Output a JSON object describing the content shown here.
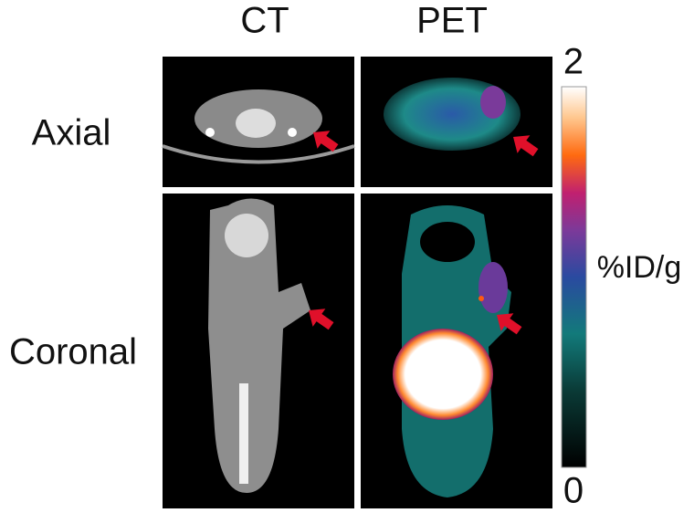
{
  "columns": [
    "CT",
    "PET"
  ],
  "rows": [
    "Axial",
    "Coronal"
  ],
  "colorbar": {
    "label": "%ID/g",
    "max": 2,
    "min": 0
  }
}
